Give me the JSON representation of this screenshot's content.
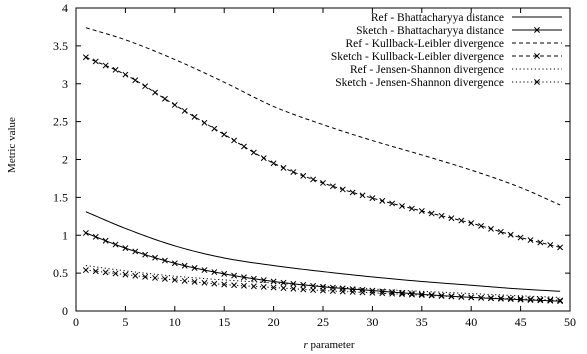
{
  "chart_data": {
    "type": "line",
    "xlabel_italic": "r",
    "xlabel_rest": " parameter",
    "ylabel": "Metric value",
    "xlim": [
      0,
      50
    ],
    "ylim": [
      0,
      4
    ],
    "xticks": [
      0,
      5,
      10,
      15,
      20,
      25,
      30,
      35,
      40,
      45,
      50
    ],
    "yticks": [
      0,
      0.5,
      1,
      1.5,
      2,
      2.5,
      3,
      3.5,
      4
    ],
    "ytick_labels": [
      "0",
      "0.5",
      "1",
      "1.5",
      "2",
      "2.5",
      "3",
      "3.5",
      "4"
    ],
    "legend_position": "top-right",
    "grid": false,
    "series": [
      {
        "name": "Ref - Bhattacharyya distance",
        "style": "solid",
        "marker": "none",
        "x": [
          1,
          5,
          10,
          15,
          20,
          25,
          30,
          35,
          40,
          45,
          49
        ],
        "y": [
          1.31,
          1.09,
          0.86,
          0.7,
          0.6,
          0.52,
          0.45,
          0.39,
          0.34,
          0.29,
          0.26
        ]
      },
      {
        "name": "Sketch - Bhattacharyya distance",
        "style": "solid",
        "marker": "x",
        "x": [
          1,
          5,
          10,
          15,
          20,
          25,
          30,
          35,
          40,
          45,
          49
        ],
        "y": [
          1.03,
          0.83,
          0.63,
          0.49,
          0.39,
          0.32,
          0.27,
          0.22,
          0.18,
          0.15,
          0.13
        ]
      },
      {
        "name": "Ref - Kullback-Leibler divergence",
        "style": "dashed",
        "marker": "none",
        "x": [
          1,
          5,
          10,
          15,
          20,
          25,
          30,
          35,
          40,
          45,
          49
        ],
        "y": [
          3.74,
          3.58,
          3.32,
          3.02,
          2.7,
          2.46,
          2.25,
          2.06,
          1.86,
          1.63,
          1.4
        ]
      },
      {
        "name": "Sketch - Kullback-Leibler divergence",
        "style": "dashed",
        "marker": "x",
        "x": [
          1,
          5,
          10,
          15,
          20,
          25,
          30,
          35,
          40,
          45,
          49
        ],
        "y": [
          3.35,
          3.12,
          2.72,
          2.33,
          1.95,
          1.69,
          1.49,
          1.32,
          1.16,
          0.97,
          0.84
        ]
      },
      {
        "name": "Ref - Jensen-Shannon divergence",
        "style": "dotted",
        "marker": "none",
        "x": [
          1,
          5,
          10,
          15,
          20,
          25,
          30,
          35,
          40,
          45,
          49
        ],
        "y": [
          0.6,
          0.53,
          0.46,
          0.41,
          0.37,
          0.33,
          0.29,
          0.26,
          0.23,
          0.2,
          0.18
        ]
      },
      {
        "name": "Sketch - Jensen-Shannon divergence",
        "style": "dotted",
        "marker": "x",
        "x": [
          1,
          5,
          10,
          15,
          20,
          25,
          30,
          35,
          40,
          45,
          49
        ],
        "y": [
          0.54,
          0.48,
          0.41,
          0.35,
          0.31,
          0.27,
          0.24,
          0.21,
          0.18,
          0.16,
          0.14
        ]
      }
    ]
  }
}
